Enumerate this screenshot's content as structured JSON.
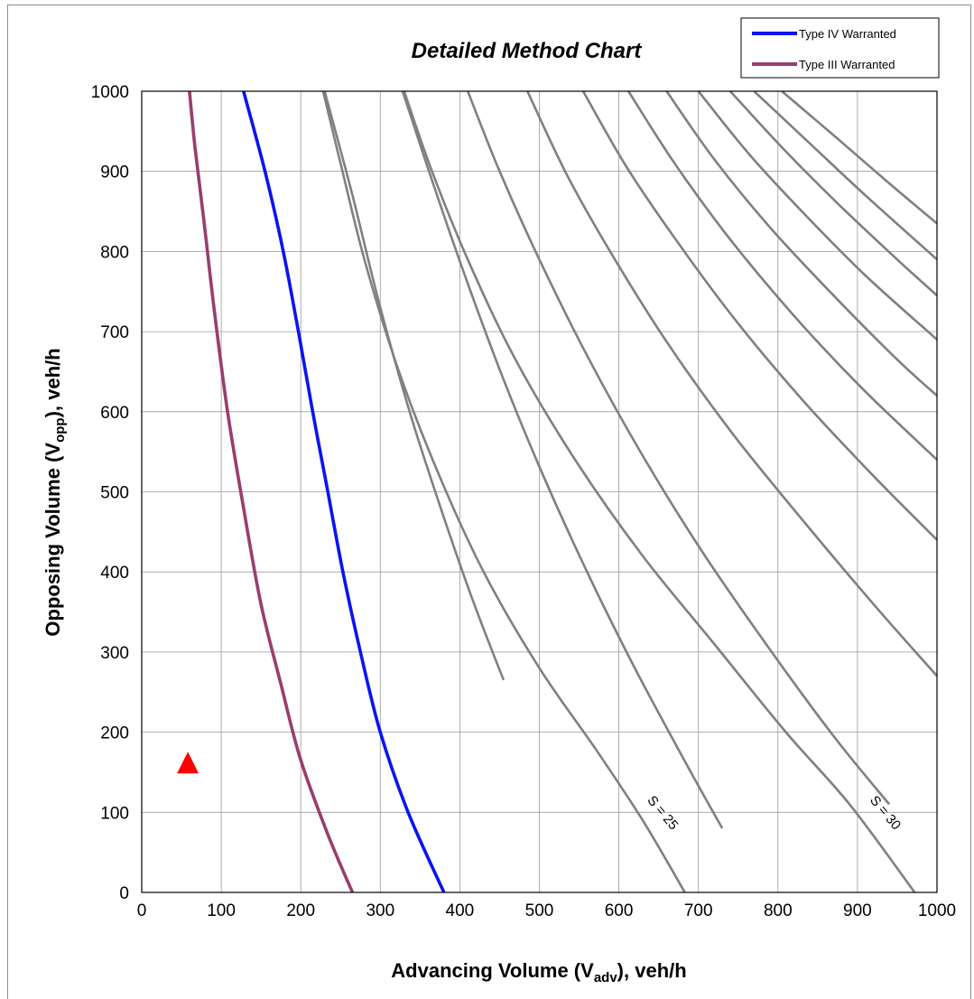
{
  "chart_data": {
    "type": "line",
    "title": "Detailed Method Chart",
    "xlabel": {
      "main": "Advancing Volume (V",
      "sub": "adv",
      "tail": "), veh/h"
    },
    "ylabel": {
      "main": "Opposing Volume (V",
      "sub": "opp",
      "tail": "), veh/h"
    },
    "xlim": [
      0,
      1000
    ],
    "ylim": [
      0,
      1000
    ],
    "xticks": [
      "0",
      "100",
      "200",
      "300",
      "400",
      "500",
      "600",
      "700",
      "800",
      "900",
      "1000"
    ],
    "yticks": [
      "0",
      "100",
      "200",
      "300",
      "400",
      "500",
      "600",
      "700",
      "800",
      "900",
      "1000"
    ],
    "grid": true,
    "legend_position": "top-right",
    "colors": {
      "type4": "#0a14f0",
      "type3": "#993d6e",
      "contour": "#808080",
      "point": "#ff0000",
      "grid": "#9a9a9a"
    },
    "series": [
      {
        "name": "Type IV Warranted",
        "color": "#0a14f0",
        "points": [
          [
            380,
            0
          ],
          [
            335,
            100
          ],
          [
            300,
            200
          ],
          [
            275,
            300
          ],
          [
            253,
            400
          ],
          [
            234,
            500
          ],
          [
            215,
            600
          ],
          [
            197,
            700
          ],
          [
            178,
            800
          ],
          [
            155,
            900
          ],
          [
            128,
            1000
          ]
        ]
      },
      {
        "name": "Type III Warranted",
        "color": "#993d6e",
        "points": [
          [
            265,
            0
          ],
          [
            235,
            70
          ],
          [
            200,
            165
          ],
          [
            175,
            260
          ],
          [
            150,
            360
          ],
          [
            128,
            480
          ],
          [
            108,
            600
          ],
          [
            92,
            720
          ],
          [
            78,
            840
          ],
          [
            67,
            930
          ],
          [
            60,
            1000
          ]
        ]
      }
    ],
    "contours": [
      {
        "points": [
          [
            230,
            1000
          ],
          [
            265,
            870
          ],
          [
            300,
            730
          ],
          [
            340,
            590
          ],
          [
            382,
            462
          ],
          [
            418,
            360
          ],
          [
            455,
            265
          ]
        ]
      },
      {
        "points": [
          [
            328,
            1000
          ],
          [
            368,
            880
          ],
          [
            410,
            760
          ],
          [
            455,
            640
          ],
          [
            505,
            520
          ],
          [
            560,
            400
          ],
          [
            620,
            280
          ],
          [
            685,
            160
          ],
          [
            730,
            80
          ]
        ]
      },
      {
        "points": [
          [
            410,
            1000
          ],
          [
            450,
            900
          ],
          [
            500,
            790
          ],
          [
            560,
            670
          ],
          [
            630,
            545
          ],
          [
            705,
            425
          ],
          [
            785,
            310
          ],
          [
            870,
            195
          ],
          [
            940,
            110
          ]
        ]
      },
      {
        "points": [
          [
            485,
            1000
          ],
          [
            535,
            895
          ],
          [
            595,
            790
          ],
          [
            665,
            680
          ],
          [
            745,
            570
          ],
          [
            835,
            460
          ],
          [
            920,
            360
          ],
          [
            1000,
            270
          ]
        ]
      },
      {
        "points": [
          [
            555,
            1000
          ],
          [
            610,
            905
          ],
          [
            675,
            810
          ],
          [
            750,
            710
          ],
          [
            835,
            610
          ],
          [
            920,
            520
          ],
          [
            1000,
            440
          ]
        ]
      },
      {
        "points": [
          [
            612,
            1000
          ],
          [
            670,
            910
          ],
          [
            740,
            815
          ],
          [
            820,
            720
          ],
          [
            905,
            630
          ],
          [
            1000,
            540
          ]
        ]
      },
      {
        "points": [
          [
            660,
            1000
          ],
          [
            720,
            915
          ],
          [
            790,
            830
          ],
          [
            870,
            745
          ],
          [
            950,
            665
          ],
          [
            1000,
            620
          ]
        ]
      },
      {
        "points": [
          [
            700,
            1000
          ],
          [
            765,
            920
          ],
          [
            835,
            845
          ],
          [
            910,
            770
          ],
          [
            1000,
            690
          ]
        ]
      },
      {
        "points": [
          [
            740,
            1000
          ],
          [
            805,
            930
          ],
          [
            875,
            860
          ],
          [
            950,
            790
          ],
          [
            1000,
            745
          ]
        ]
      },
      {
        "points": [
          [
            770,
            1000
          ],
          [
            840,
            935
          ],
          [
            910,
            870
          ],
          [
            1000,
            790
          ]
        ]
      },
      {
        "points": [
          [
            805,
            1000
          ],
          [
            870,
            945
          ],
          [
            940,
            885
          ],
          [
            1000,
            835
          ]
        ]
      }
    ],
    "full_contours": [
      {
        "label": "S = 25",
        "points": [
          [
            228,
            1000
          ],
          [
            250,
            910
          ],
          [
            280,
            790
          ],
          [
            320,
            660
          ],
          [
            370,
            530
          ],
          [
            430,
            400
          ],
          [
            500,
            280
          ],
          [
            570,
            180
          ],
          [
            630,
            90
          ],
          [
            683,
            0
          ]
        ]
      },
      {
        "label": "S = 30",
        "points": [
          [
            330,
            1000
          ],
          [
            365,
            900
          ],
          [
            410,
            790
          ],
          [
            470,
            665
          ],
          [
            545,
            540
          ],
          [
            630,
            420
          ],
          [
            720,
            310
          ],
          [
            810,
            200
          ],
          [
            890,
            110
          ],
          [
            972,
            0
          ]
        ]
      }
    ],
    "markers": [
      {
        "shape": "triangle",
        "x": 58,
        "y": 162,
        "color": "#ff0000"
      }
    ]
  }
}
